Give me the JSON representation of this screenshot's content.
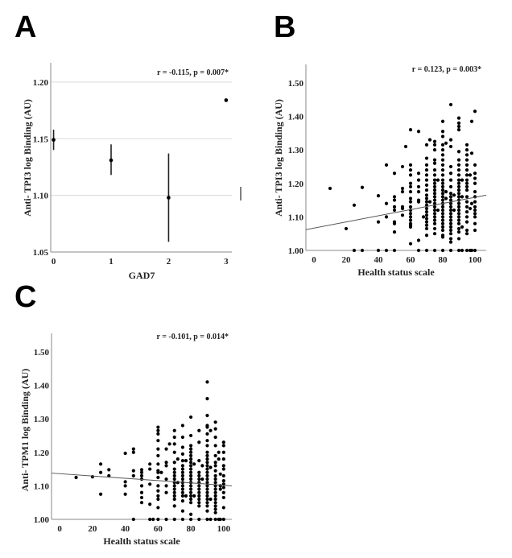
{
  "chart_data": [
    {
      "panel": "A",
      "type": "scatter",
      "subtype": "mean-with-error-bars",
      "annotation": "r = -0.115, p = 0.007*",
      "xlabel": "GAD7",
      "ylabel": "Anti- TPI3 log Binding (AU)",
      "x_ticks": [
        "0",
        "1",
        "2",
        "3"
      ],
      "y_ticks": [
        "1.05",
        "1.10",
        "1.15",
        "1.20"
      ],
      "xlim": [
        -0.05,
        3.1
      ],
      "ylim": [
        1.05,
        1.217
      ],
      "grid": "horizontal",
      "points": [
        {
          "x": 0,
          "mean": 1.149,
          "low": 1.14,
          "high": 1.158
        },
        {
          "x": 1,
          "mean": 1.131,
          "low": 1.118,
          "high": 1.145
        },
        {
          "x": 2,
          "mean": 1.098,
          "low": 1.059,
          "high": 1.137
        },
        {
          "x": 3,
          "mean": 1.184,
          "low": null,
          "high": null
        }
      ]
    },
    {
      "panel": "B",
      "type": "scatter",
      "annotation": "r = 0.123, p = 0.003*",
      "xlabel": "Health status scale",
      "ylabel": "Anti- TPI3 log Binding (AU)",
      "x_ticks": [
        "0",
        "20",
        "40",
        "60",
        "80",
        "100"
      ],
      "y_ticks": [
        "1.00",
        "1.10",
        "1.20",
        "1.30",
        "1.40",
        "1.50"
      ],
      "xlim": [
        -5,
        107
      ],
      "ylim": [
        1.0,
        1.555
      ],
      "grid": "none",
      "regression": {
        "x": [
          -5,
          107
        ],
        "y": [
          1.062,
          1.165
        ]
      },
      "columns": [
        {
          "x": 10,
          "y": [
            1.185
          ]
        },
        {
          "x": 20,
          "y": [
            1.065
          ]
        },
        {
          "x": 25,
          "y": [
            1.135,
            1.0
          ]
        },
        {
          "x": 30,
          "y": [
            1.188,
            1.0
          ]
        },
        {
          "x": 40,
          "y": [
            1.163,
            1.085,
            1.0
          ]
        },
        {
          "x": 45,
          "y": [
            1.255,
            1.14,
            1.1,
            1.0
          ]
        },
        {
          "x": 50,
          "y": [
            1.23,
            1.16,
            1.15,
            1.13,
            1.12,
            1.085,
            1.08,
            1.055,
            1.0
          ]
        },
        {
          "x": 55,
          "y": [
            1.25,
            1.185,
            1.175,
            1.13,
            1.125,
            1.105
          ]
        },
        {
          "x": 57,
          "y": [
            1.31
          ]
        },
        {
          "x": 60,
          "y": [
            1.36,
            1.255,
            1.24,
            1.225,
            1.2,
            1.19,
            1.175,
            1.155,
            1.145,
            1.13,
            1.12,
            1.11,
            1.1,
            1.09,
            1.08,
            1.075,
            1.07,
            1.02
          ]
        },
        {
          "x": 65,
          "y": [
            1.355,
            1.23,
            1.21,
            1.19,
            1.175,
            1.15,
            1.145,
            1.03,
            1.0
          ]
        },
        {
          "x": 68,
          "y": [
            1.1
          ]
        },
        {
          "x": 70,
          "y": [
            1.315,
            1.275,
            1.255,
            1.24,
            1.225,
            1.21,
            1.195,
            1.18,
            1.165,
            1.155,
            1.145,
            1.135,
            1.125,
            1.115,
            1.105,
            1.095,
            1.085,
            1.075,
            1.065,
            1.045,
            1.0
          ]
        },
        {
          "x": 72,
          "y": [
            1.33,
            1.145
          ]
        },
        {
          "x": 75,
          "y": [
            1.325,
            1.315,
            1.3,
            1.27,
            1.26,
            1.24,
            1.225,
            1.21,
            1.2,
            1.19,
            1.18,
            1.17,
            1.16,
            1.15,
            1.14,
            1.13,
            1.12,
            1.11,
            1.1,
            1.09,
            1.08,
            1.065,
            1.05,
            1.0
          ]
        },
        {
          "x": 77,
          "y": [
            1.21,
            1.12
          ]
        },
        {
          "x": 80,
          "y": [
            1.385,
            1.355,
            1.34,
            1.315,
            1.3,
            1.285,
            1.27,
            1.255,
            1.24,
            1.225,
            1.21,
            1.2,
            1.19,
            1.18,
            1.17,
            1.16,
            1.15,
            1.14,
            1.13,
            1.12,
            1.11,
            1.1,
            1.09,
            1.08,
            1.07,
            1.06,
            1.045,
            1.04,
            1.0
          ]
        },
        {
          "x": 82,
          "y": [
            1.32,
            1.175,
            1.155
          ]
        },
        {
          "x": 85,
          "y": [
            1.435,
            1.33,
            1.31,
            1.25,
            1.23,
            1.21,
            1.19,
            1.17,
            1.16,
            1.15,
            1.14,
            1.13,
            1.12,
            1.11,
            1.1,
            1.09,
            1.08,
            1.07,
            1.06,
            1.05,
            1.035,
            1.025,
            1.0
          ]
        },
        {
          "x": 87,
          "y": [
            1.165,
            1.12
          ]
        },
        {
          "x": 90,
          "y": [
            1.395,
            1.38,
            1.37,
            1.36,
            1.295,
            1.27,
            1.255,
            1.24,
            1.225,
            1.21,
            1.2,
            1.19,
            1.18,
            1.17,
            1.16,
            1.15,
            1.14,
            1.13,
            1.12,
            1.11,
            1.1,
            1.09,
            1.08,
            1.065,
            1.055,
            1.035,
            1.0
          ]
        },
        {
          "x": 92,
          "y": [
            1.21,
            1.16,
            1.07,
            1.0
          ]
        },
        {
          "x": 95,
          "y": [
            1.315,
            1.3,
            1.285,
            1.27,
            1.255,
            1.24,
            1.225,
            1.21,
            1.2,
            1.19,
            1.18,
            1.16,
            1.145,
            1.13,
            1.115,
            1.1,
            1.085,
            1.06,
            1.05,
            1.0
          ]
        },
        {
          "x": 97,
          "y": [
            1.225,
            1.125,
            1.0
          ]
        },
        {
          "x": 98,
          "y": [
            1.385,
            1.29,
            1.14,
            1.0
          ]
        },
        {
          "x": 100,
          "y": [
            1.415,
            1.255,
            1.23,
            1.215,
            1.2,
            1.175,
            1.16,
            1.145,
            1.13,
            1.12,
            1.11,
            1.1,
            1.08,
            1.06,
            1.0
          ]
        }
      ]
    },
    {
      "panel": "C",
      "type": "scatter",
      "annotation": "r = -0.101, p = 0.014*",
      "xlabel": "Health status scale",
      "ylabel": "Anti- TPM1 log Binding (AU)",
      "x_ticks": [
        "0",
        "20",
        "40",
        "60",
        "80",
        "100"
      ],
      "y_ticks": [
        "1.00",
        "1.10",
        "1.20",
        "1.30",
        "1.40",
        "1.50"
      ],
      "xlim": [
        -5,
        105
      ],
      "ylim": [
        1.0,
        1.555
      ],
      "grid": "none",
      "regression": {
        "x": [
          -5,
          105
        ],
        "y": [
          1.138,
          1.1
        ]
      },
      "columns": [
        {
          "x": 10,
          "y": [
            1.125
          ]
        },
        {
          "x": 20,
          "y": [
            1.127
          ]
        },
        {
          "x": 25,
          "y": [
            1.165,
            1.14,
            1.075
          ]
        },
        {
          "x": 30,
          "y": [
            1.148,
            1.13
          ]
        },
        {
          "x": 40,
          "y": [
            1.197,
            1.112,
            1.1,
            1.075
          ]
        },
        {
          "x": 45,
          "y": [
            1.21,
            1.2,
            1.145,
            1.13,
            1.0
          ]
        },
        {
          "x": 50,
          "y": [
            1.148,
            1.14,
            1.13,
            1.12,
            1.1,
            1.08,
            1.065,
            1.05
          ]
        },
        {
          "x": 55,
          "y": [
            1.165,
            1.15,
            1.105,
            1.045,
            1.0
          ]
        },
        {
          "x": 57,
          "y": [
            1.0
          ]
        },
        {
          "x": 60,
          "y": [
            1.275,
            1.265,
            1.255,
            1.235,
            1.21,
            1.19,
            1.165,
            1.145,
            1.14,
            1.125,
            1.1,
            1.085,
            1.07,
            1.06,
            1.035,
            1.0
          ]
        },
        {
          "x": 62,
          "y": [
            1.14
          ]
        },
        {
          "x": 65,
          "y": [
            1.21,
            1.17,
            1.16,
            1.12,
            1.1,
            1.08,
            1.0
          ]
        },
        {
          "x": 67,
          "y": [
            1.225
          ]
        },
        {
          "x": 70,
          "y": [
            1.265,
            1.245,
            1.225,
            1.2,
            1.17,
            1.15,
            1.14,
            1.13,
            1.12,
            1.11,
            1.1,
            1.09,
            1.08,
            1.07,
            1.06,
            1.04,
            1.0
          ]
        },
        {
          "x": 72,
          "y": [
            1.18,
            1.11
          ]
        },
        {
          "x": 75,
          "y": [
            1.28,
            1.245,
            1.215,
            1.195,
            1.175,
            1.16,
            1.15,
            1.14,
            1.13,
            1.12,
            1.11,
            1.1,
            1.09,
            1.08,
            1.07,
            1.055,
            1.025,
            1.0
          ]
        },
        {
          "x": 77,
          "y": [
            1.175,
            1.07
          ]
        },
        {
          "x": 80,
          "y": [
            1.305,
            1.25,
            1.22,
            1.21,
            1.2,
            1.19,
            1.18,
            1.17,
            1.16,
            1.15,
            1.14,
            1.13,
            1.12,
            1.11,
            1.1,
            1.09,
            1.08,
            1.07,
            1.06,
            1.05,
            1.015,
            1.0
          ]
        },
        {
          "x": 82,
          "y": [
            1.165,
            1.07
          ]
        },
        {
          "x": 85,
          "y": [
            1.265,
            1.23,
            1.175,
            1.14,
            1.13,
            1.12,
            1.11,
            1.1,
            1.09,
            1.08,
            1.07,
            1.06,
            1.05,
            1.04,
            1.0
          ]
        },
        {
          "x": 87,
          "y": [
            1.16,
            1.12
          ]
        },
        {
          "x": 90,
          "y": [
            1.41,
            1.36,
            1.31,
            1.28,
            1.275,
            1.255,
            1.235,
            1.22,
            1.2,
            1.19,
            1.18,
            1.17,
            1.16,
            1.15,
            1.14,
            1.13,
            1.12,
            1.11,
            1.1,
            1.09,
            1.08,
            1.07,
            1.06,
            1.05,
            1.04,
            1.025,
            1.0
          ]
        },
        {
          "x": 92,
          "y": [
            1.265,
            1.155,
            1.06,
            1.0
          ]
        },
        {
          "x": 95,
          "y": [
            1.29,
            1.27,
            1.245,
            1.22,
            1.19,
            1.17,
            1.16,
            1.145,
            1.13,
            1.12,
            1.11,
            1.1,
            1.09,
            1.08,
            1.07,
            1.06,
            1.05,
            1.04,
            1.03,
            1.02,
            1.0
          ]
        },
        {
          "x": 97,
          "y": [
            1.2,
            1.18,
            1.0
          ]
        },
        {
          "x": 98,
          "y": [
            1.135,
            1.1,
            1.09,
            1.0
          ]
        },
        {
          "x": 100,
          "y": [
            1.23,
            1.22,
            1.2,
            1.18,
            1.16,
            1.15,
            1.13,
            1.115,
            1.105,
            1.095,
            1.08,
            1.065,
            1.035,
            1.0
          ]
        }
      ]
    }
  ],
  "panels": {
    "A": {
      "letter": "A"
    },
    "B": {
      "letter": "B"
    },
    "C": {
      "letter": "C"
    }
  }
}
